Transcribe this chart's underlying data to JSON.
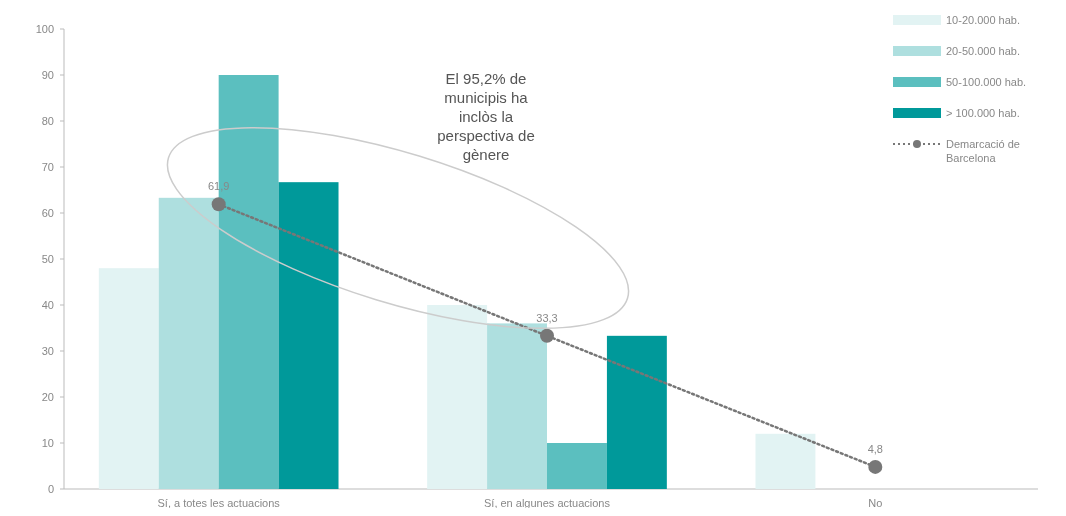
{
  "chart_data": {
    "type": "bar",
    "categories": [
      "Sí, a totes les actuacions",
      "Sí, en algunes actuacions",
      "No"
    ],
    "series": [
      {
        "name": "10-20.000 hab.",
        "color": "#e2f3f3",
        "values": [
          48,
          40,
          12
        ]
      },
      {
        "name": "20-50.000 hab.",
        "color": "#aedfdf",
        "values": [
          63.3,
          36,
          0
        ]
      },
      {
        "name": "50-100.000 hab.",
        "color": "#5bbfbf",
        "values": [
          90,
          10,
          0
        ]
      },
      {
        "name": "> 100.000 hab.",
        "color": "#00999a",
        "values": [
          66.7,
          33.3,
          0
        ]
      },
      {
        "name": "Demarcació de Barcelona",
        "type": "line",
        "color": "#777777",
        "marker": "circle",
        "line_style": "dotted",
        "values": [
          61.9,
          33.3,
          4.8
        ],
        "value_labels": [
          "61,9",
          "33,3",
          "4,8"
        ]
      }
    ],
    "ylim": [
      0,
      100
    ],
    "yticks": [
      0,
      10,
      20,
      30,
      40,
      50,
      60,
      70,
      80,
      90,
      100
    ],
    "grid": false,
    "legend": "top right",
    "annotations": [
      "El 95,2% de municipis ha inclòs la perspectiva de gènere"
    ]
  }
}
